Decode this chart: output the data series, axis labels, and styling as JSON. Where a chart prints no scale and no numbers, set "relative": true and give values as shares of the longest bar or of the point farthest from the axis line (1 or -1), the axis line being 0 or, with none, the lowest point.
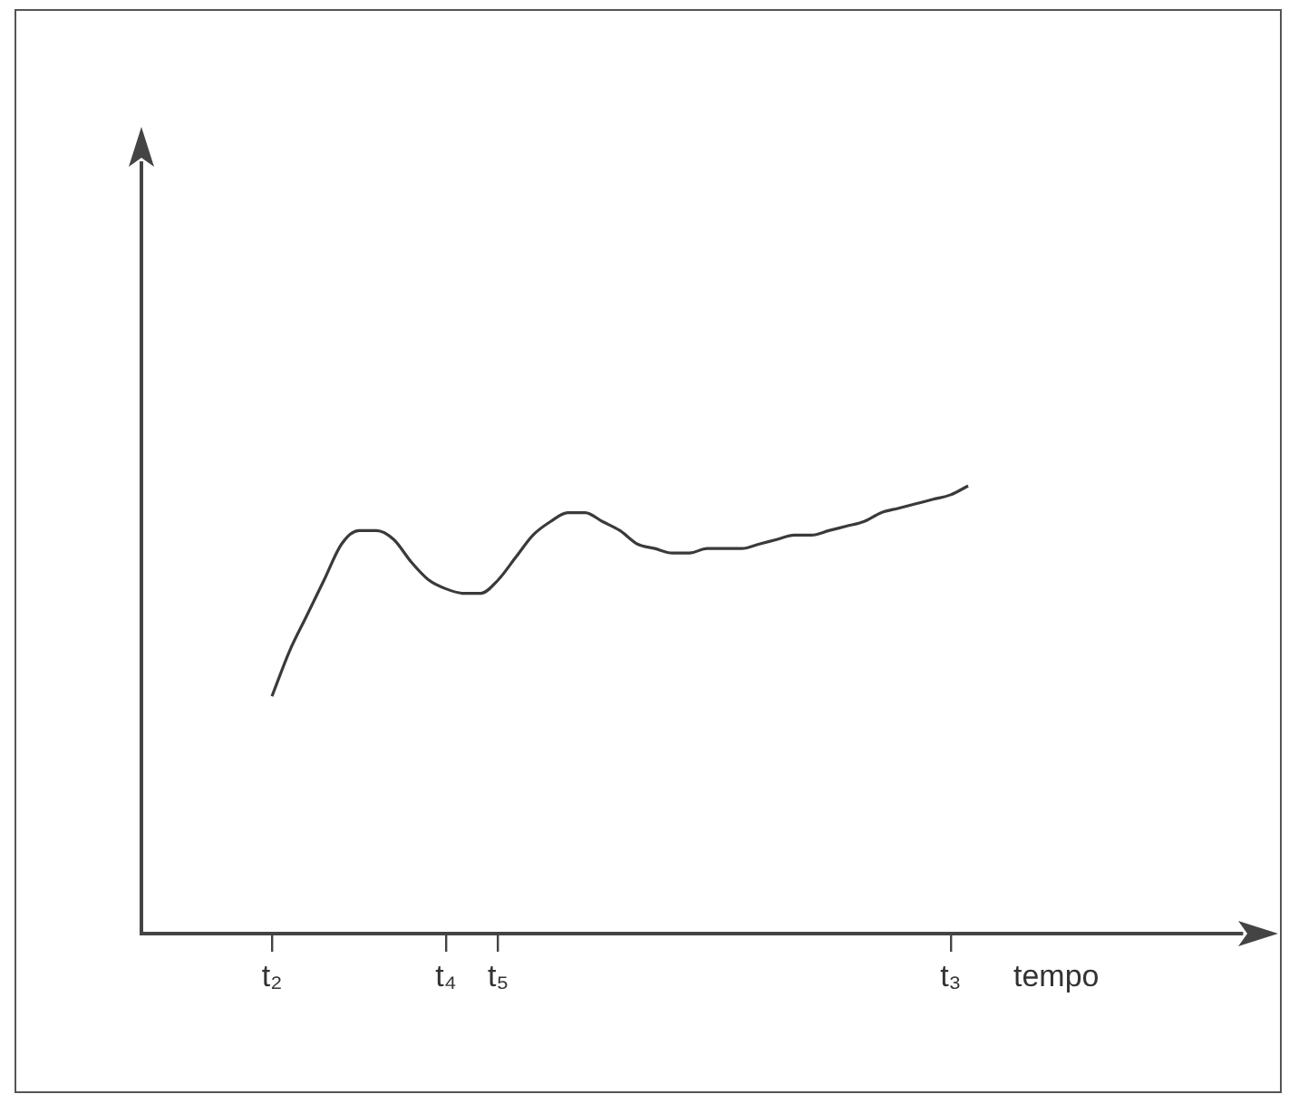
{
  "chart_data": {
    "type": "line",
    "relative": true,
    "xlabel": "tempo",
    "color": "#3a3a3a",
    "grid": false,
    "legend": false,
    "marker": "none",
    "tick_labels": "x",
    "categories": [
      "t₂",
      null,
      null,
      null,
      null,
      null,
      null,
      null,
      null,
      null,
      "t₄",
      null,
      null,
      "t₅",
      null,
      null,
      null,
      null,
      null,
      null,
      null,
      null,
      null,
      null,
      null,
      null,
      null,
      null,
      null,
      null,
      null,
      null,
      null,
      null,
      null,
      null,
      null,
      null,
      null,
      "t₃",
      null
    ],
    "values": [
      0.53,
      0.63,
      0.71,
      0.79,
      0.87,
      0.9,
      0.9,
      0.88,
      0.83,
      0.79,
      0.77,
      0.76,
      0.76,
      0.79,
      0.84,
      0.89,
      0.92,
      0.94,
      0.94,
      0.92,
      0.9,
      0.87,
      0.86,
      0.85,
      0.85,
      0.86,
      0.86,
      0.86,
      0.87,
      0.88,
      0.89,
      0.89,
      0.9,
      0.91,
      0.92,
      0.94,
      0.95,
      0.96,
      0.97,
      0.98,
      1
    ]
  }
}
